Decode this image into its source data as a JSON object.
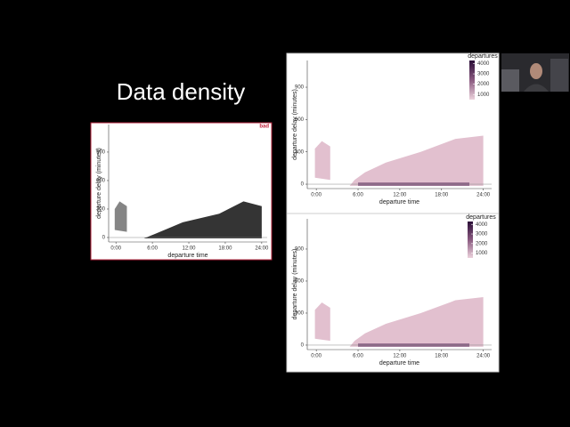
{
  "title": "Data density",
  "panels": [
    {
      "badge": "bad",
      "x_label": "departure time",
      "y_label": "departure delay (minutes)",
      "xlim": [
        -1.2,
        24.9
      ],
      "ylim": [
        -47,
        1190
      ],
      "xticks": [
        {
          "value": 0,
          "label": "0:00"
        },
        {
          "value": 6,
          "label": "6:00"
        },
        {
          "value": 12,
          "label": "12:00"
        },
        {
          "value": 18,
          "label": "18:00"
        },
        {
          "value": 24,
          "label": "24:00"
        }
      ],
      "yticks": [
        0,
        300,
        600,
        900
      ]
    },
    {
      "x_label": "departure time",
      "y_label": "departure delay (minutes)",
      "xlim": [
        -1.3,
        25.2
      ],
      "ylim": [
        -41,
        1148
      ],
      "xticks": [
        {
          "value": 0,
          "label": "0:00"
        },
        {
          "value": 6,
          "label": "6:00"
        },
        {
          "value": 12,
          "label": "12:00"
        },
        {
          "value": 18,
          "label": "18:00"
        },
        {
          "value": 24,
          "label": "24:00"
        }
      ],
      "yticks": [
        0,
        300,
        600,
        900
      ],
      "legend": {
        "title": "departures",
        "lim": [
          500,
          4300
        ],
        "ticks": [
          1000,
          2000,
          3000,
          4000
        ]
      }
    },
    {
      "x_label": "departure time",
      "y_label": "departure delay (minutes)",
      "xlim": [
        -1.3,
        25.2
      ],
      "ylim": [
        -42,
        1183
      ],
      "xticks": [
        {
          "value": 0,
          "label": "0:00"
        },
        {
          "value": 6,
          "label": "6:00"
        },
        {
          "value": 12,
          "label": "12:00"
        },
        {
          "value": 18,
          "label": "18:00"
        },
        {
          "value": 24,
          "label": "24:00"
        }
      ],
      "yticks": [
        0,
        300,
        600,
        900
      ],
      "legend": {
        "title": "departures",
        "lim": [
          500,
          4300
        ],
        "ticks": [
          1000,
          2000,
          3000,
          4000
        ]
      }
    }
  ]
}
